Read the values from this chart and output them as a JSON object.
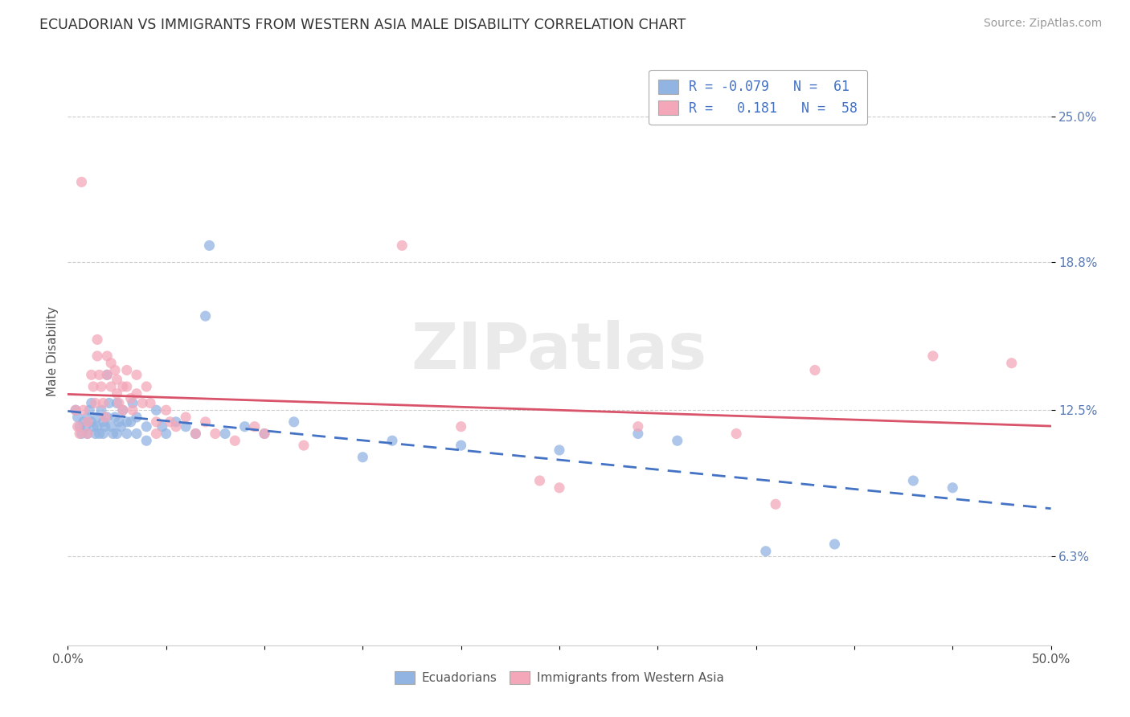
{
  "title": "ECUADORIAN VS IMMIGRANTS FROM WESTERN ASIA MALE DISABILITY CORRELATION CHART",
  "source": "Source: ZipAtlas.com",
  "ylabel": "Male Disability",
  "xlim": [
    0.0,
    0.5
  ],
  "ylim": [
    0.025,
    0.275
  ],
  "yticks": [
    0.063,
    0.125,
    0.188,
    0.25
  ],
  "ytick_labels": [
    "6.3%",
    "12.5%",
    "18.8%",
    "25.0%"
  ],
  "xticks": [
    0.0,
    0.05,
    0.1,
    0.15,
    0.2,
    0.25,
    0.3,
    0.35,
    0.4,
    0.45,
    0.5
  ],
  "xtick_labels": [
    "0.0%",
    "",
    "",
    "",
    "",
    "",
    "",
    "",
    "",
    "",
    "50.0%"
  ],
  "R_blue": -0.079,
  "N_blue": 61,
  "R_pink": 0.181,
  "N_pink": 58,
  "blue_color": "#92B4E3",
  "pink_color": "#F4A7B9",
  "blue_line_color": "#4472C4",
  "pink_line_color": "#D9536A",
  "watermark": "ZIPatlas",
  "blue_scatter": [
    [
      0.004,
      0.125
    ],
    [
      0.005,
      0.122
    ],
    [
      0.006,
      0.118
    ],
    [
      0.007,
      0.115
    ],
    [
      0.008,
      0.12
    ],
    [
      0.009,
      0.118
    ],
    [
      0.01,
      0.122
    ],
    [
      0.01,
      0.115
    ],
    [
      0.011,
      0.125
    ],
    [
      0.012,
      0.12
    ],
    [
      0.012,
      0.128
    ],
    [
      0.013,
      0.118
    ],
    [
      0.014,
      0.115
    ],
    [
      0.015,
      0.122
    ],
    [
      0.015,
      0.118
    ],
    [
      0.016,
      0.115
    ],
    [
      0.017,
      0.125
    ],
    [
      0.018,
      0.12
    ],
    [
      0.018,
      0.115
    ],
    [
      0.019,
      0.118
    ],
    [
      0.02,
      0.14
    ],
    [
      0.02,
      0.122
    ],
    [
      0.021,
      0.128
    ],
    [
      0.022,
      0.118
    ],
    [
      0.023,
      0.115
    ],
    [
      0.024,
      0.122
    ],
    [
      0.025,
      0.128
    ],
    [
      0.025,
      0.115
    ],
    [
      0.026,
      0.12
    ],
    [
      0.027,
      0.118
    ],
    [
      0.028,
      0.125
    ],
    [
      0.03,
      0.12
    ],
    [
      0.03,
      0.115
    ],
    [
      0.032,
      0.12
    ],
    [
      0.033,
      0.128
    ],
    [
      0.035,
      0.115
    ],
    [
      0.035,
      0.122
    ],
    [
      0.04,
      0.118
    ],
    [
      0.04,
      0.112
    ],
    [
      0.045,
      0.125
    ],
    [
      0.048,
      0.118
    ],
    [
      0.05,
      0.115
    ],
    [
      0.055,
      0.12
    ],
    [
      0.06,
      0.118
    ],
    [
      0.065,
      0.115
    ],
    [
      0.07,
      0.165
    ],
    [
      0.072,
      0.195
    ],
    [
      0.08,
      0.115
    ],
    [
      0.09,
      0.118
    ],
    [
      0.1,
      0.115
    ],
    [
      0.115,
      0.12
    ],
    [
      0.15,
      0.105
    ],
    [
      0.165,
      0.112
    ],
    [
      0.2,
      0.11
    ],
    [
      0.25,
      0.108
    ],
    [
      0.29,
      0.115
    ],
    [
      0.31,
      0.112
    ],
    [
      0.355,
      0.065
    ],
    [
      0.39,
      0.068
    ],
    [
      0.43,
      0.095
    ],
    [
      0.45,
      0.092
    ]
  ],
  "pink_scatter": [
    [
      0.004,
      0.125
    ],
    [
      0.005,
      0.118
    ],
    [
      0.006,
      0.115
    ],
    [
      0.007,
      0.222
    ],
    [
      0.008,
      0.125
    ],
    [
      0.01,
      0.12
    ],
    [
      0.01,
      0.115
    ],
    [
      0.012,
      0.14
    ],
    [
      0.013,
      0.135
    ],
    [
      0.014,
      0.128
    ],
    [
      0.015,
      0.155
    ],
    [
      0.015,
      0.148
    ],
    [
      0.016,
      0.14
    ],
    [
      0.017,
      0.135
    ],
    [
      0.018,
      0.128
    ],
    [
      0.019,
      0.122
    ],
    [
      0.02,
      0.148
    ],
    [
      0.02,
      0.14
    ],
    [
      0.022,
      0.145
    ],
    [
      0.022,
      0.135
    ],
    [
      0.024,
      0.142
    ],
    [
      0.025,
      0.138
    ],
    [
      0.025,
      0.132
    ],
    [
      0.026,
      0.128
    ],
    [
      0.028,
      0.135
    ],
    [
      0.028,
      0.125
    ],
    [
      0.03,
      0.142
    ],
    [
      0.03,
      0.135
    ],
    [
      0.032,
      0.13
    ],
    [
      0.033,
      0.125
    ],
    [
      0.035,
      0.14
    ],
    [
      0.035,
      0.132
    ],
    [
      0.038,
      0.128
    ],
    [
      0.04,
      0.135
    ],
    [
      0.042,
      0.128
    ],
    [
      0.045,
      0.12
    ],
    [
      0.045,
      0.115
    ],
    [
      0.05,
      0.125
    ],
    [
      0.052,
      0.12
    ],
    [
      0.055,
      0.118
    ],
    [
      0.06,
      0.122
    ],
    [
      0.065,
      0.115
    ],
    [
      0.07,
      0.12
    ],
    [
      0.075,
      0.115
    ],
    [
      0.085,
      0.112
    ],
    [
      0.095,
      0.118
    ],
    [
      0.1,
      0.115
    ],
    [
      0.12,
      0.11
    ],
    [
      0.17,
      0.195
    ],
    [
      0.2,
      0.118
    ],
    [
      0.24,
      0.095
    ],
    [
      0.25,
      0.092
    ],
    [
      0.29,
      0.118
    ],
    [
      0.34,
      0.115
    ],
    [
      0.36,
      0.085
    ],
    [
      0.38,
      0.142
    ],
    [
      0.44,
      0.148
    ],
    [
      0.48,
      0.145
    ]
  ]
}
